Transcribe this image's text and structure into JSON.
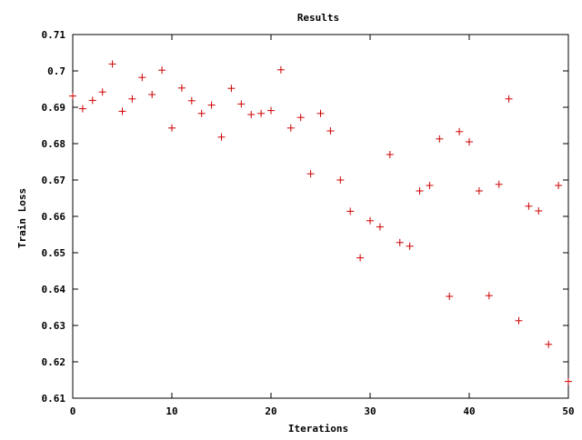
{
  "chart_data": {
    "type": "scatter",
    "title": "Results",
    "xlabel": "Iterations",
    "ylabel": "Train Loss",
    "xlim": [
      0,
      50
    ],
    "ylim": [
      0.61,
      0.71
    ],
    "xticks": [
      0,
      10,
      20,
      30,
      40,
      50
    ],
    "yticks": [
      0.61,
      0.62,
      0.63,
      0.64,
      0.65,
      0.66,
      0.67,
      0.68,
      0.69,
      0.7,
      0.71
    ],
    "ytick_labels": [
      "0.61",
      "0.62",
      "0.63",
      "0.64",
      "0.65",
      "0.66",
      "0.67",
      "0.68",
      "0.69",
      "0.7",
      "0.71"
    ],
    "grid": false,
    "legend": "none",
    "marker": "plus",
    "color": "#cc0000",
    "series": [
      {
        "x": [
          0,
          1,
          2,
          3,
          4,
          5,
          6,
          7,
          8,
          9,
          10,
          11,
          12,
          13,
          14,
          15,
          16,
          17,
          18,
          19,
          20,
          21,
          22,
          23,
          24,
          25,
          26,
          27,
          28,
          29,
          30,
          31,
          32,
          33,
          34,
          35,
          36,
          37,
          38,
          39,
          40,
          41,
          42,
          43,
          44,
          45,
          46,
          47,
          48,
          49,
          50
        ],
        "y": [
          0.6931,
          0.6896,
          0.6919,
          0.6942,
          0.7019,
          0.6889,
          0.6923,
          0.6982,
          0.6935,
          0.7002,
          0.6843,
          0.6953,
          0.6918,
          0.6883,
          0.6906,
          0.6818,
          0.6952,
          0.6909,
          0.688,
          0.6883,
          0.6891,
          0.7003,
          0.6843,
          0.6872,
          0.6717,
          0.6883,
          0.6835,
          0.67,
          0.6614,
          0.6486,
          0.6588,
          0.6571,
          0.677,
          0.6528,
          0.6518,
          0.667,
          0.6685,
          0.6813,
          0.638,
          0.6833,
          0.6805,
          0.667,
          0.6382,
          0.6688,
          0.6923,
          0.6313,
          0.6628,
          0.6615,
          0.6248,
          0.6685,
          0.6146
        ]
      }
    ]
  }
}
